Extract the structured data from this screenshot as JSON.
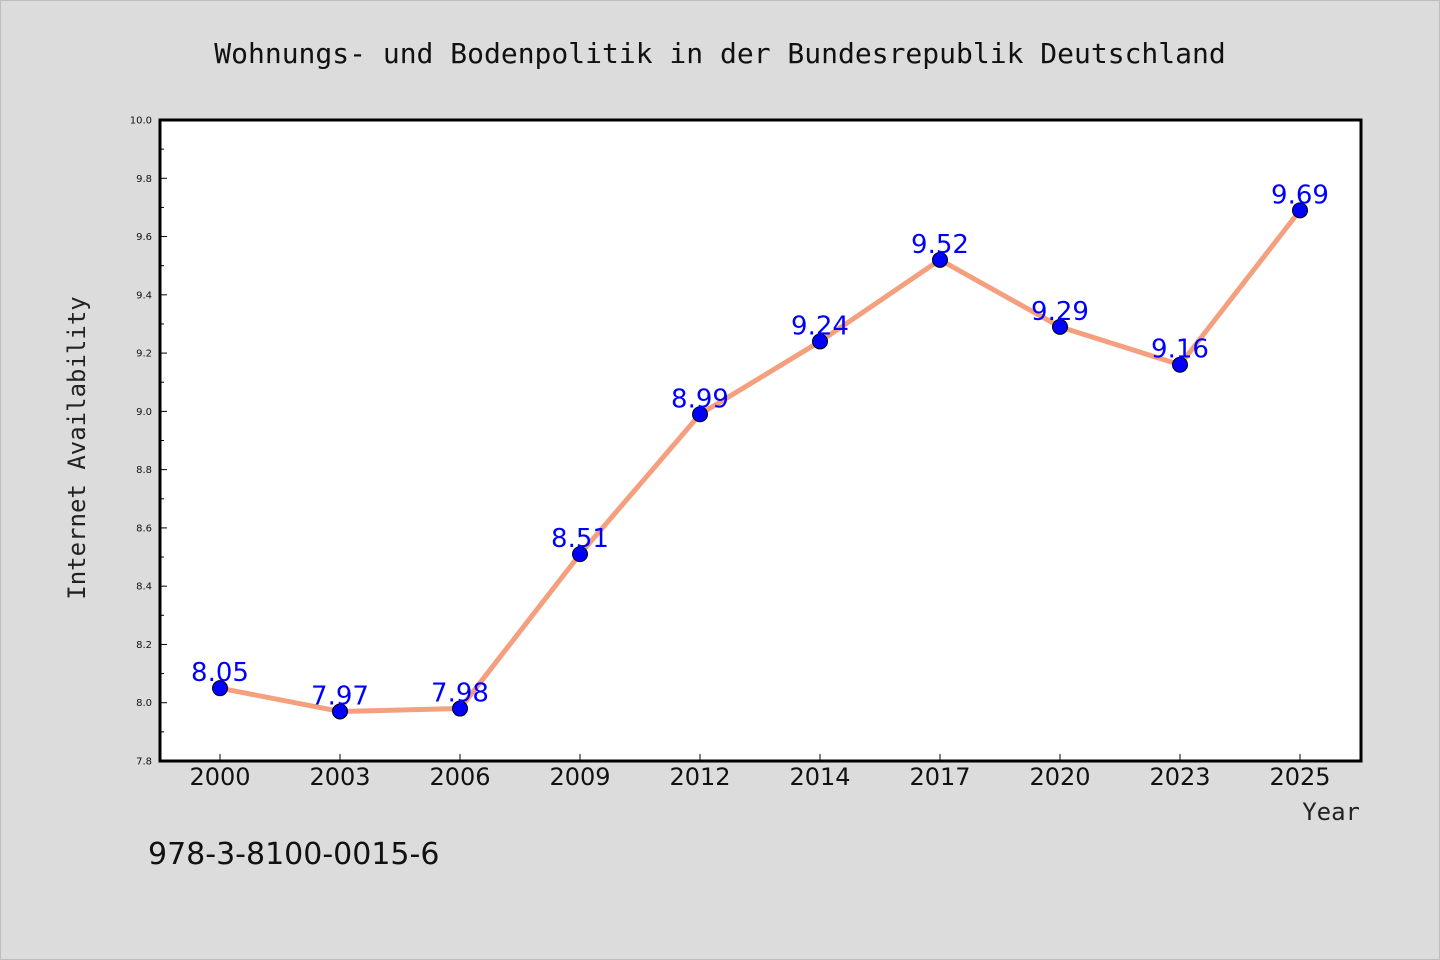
{
  "chart_data": {
    "type": "line",
    "title": "Wohnungs- und Bodenpolitik in der Bundesrepublik Deutschland",
    "xlabel": "Year",
    "ylabel": "Internet Availability",
    "categories": [
      "2000",
      "2003",
      "2006",
      "2009",
      "2012",
      "2014",
      "2017",
      "2020",
      "2023",
      "2025"
    ],
    "series": [
      {
        "values": [
          8.05,
          7.97,
          7.98,
          8.51,
          8.99,
          9.24,
          9.52,
          9.29,
          9.16,
          9.69
        ],
        "labels": [
          "8.05",
          "7.97",
          "7.98",
          "8.51",
          "8.99",
          "9.24",
          "9.52",
          "9.29",
          "9.16",
          "9.69"
        ],
        "line_color": "#f4a07e",
        "marker_color": "#0000ff"
      }
    ],
    "ylim": [
      7.8,
      10.0
    ],
    "yticks": [
      "7.8",
      "8.0",
      "8.2",
      "8.4",
      "8.6",
      "8.8",
      "9.0",
      "9.2",
      "9.4",
      "9.6",
      "9.8",
      "10.0"
    ],
    "grid": false,
    "legend": "none"
  },
  "footer": {
    "isbn": "978-3-8100-0015-6"
  },
  "colors": {
    "background": "#dcdcdc",
    "plot_background": "#ffffff",
    "axis": "#000000"
  }
}
